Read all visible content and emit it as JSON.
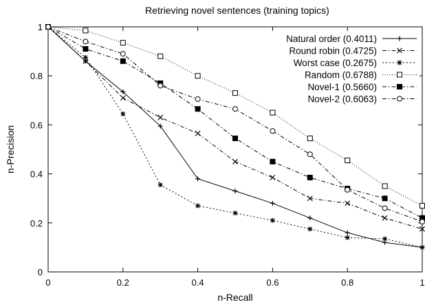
{
  "chart_data": {
    "type": "line",
    "title": "Retrieving novel sentences (training topics)",
    "xlabel": "n-Recall",
    "ylabel": "n-Precision",
    "xlim": [
      0,
      1
    ],
    "ylim": [
      0,
      1
    ],
    "x_ticks": [
      "0",
      "0.2",
      "0.4",
      "0.6",
      "0.8",
      "1"
    ],
    "y_ticks": [
      "0",
      "0.2",
      "0.4",
      "0.6",
      "0.8",
      "1"
    ],
    "grid": false,
    "legend_position": "top-right",
    "x": [
      0,
      0.1,
      0.2,
      0.3,
      0.4,
      0.5,
      0.6,
      0.7,
      0.8,
      0.9,
      1.0
    ],
    "series": [
      {
        "name": "Natural order (0.4011)",
        "marker": "plus",
        "dash": "solid",
        "values": [
          1.0,
          0.86,
          0.735,
          0.595,
          0.38,
          0.33,
          0.28,
          0.22,
          0.16,
          0.12,
          0.1
        ]
      },
      {
        "name": "Round robin (0.4725)",
        "marker": "cross",
        "dash": "dash-dot",
        "values": [
          1.0,
          0.86,
          0.71,
          0.63,
          0.565,
          0.45,
          0.385,
          0.3,
          0.28,
          0.22,
          0.175
        ]
      },
      {
        "name": "Worst case (0.2675)",
        "marker": "star",
        "dash": "dotted",
        "values": [
          1.0,
          0.875,
          0.645,
          0.355,
          0.27,
          0.24,
          0.21,
          0.175,
          0.14,
          0.135,
          0.1
        ]
      },
      {
        "name": "Random (0.6788)",
        "marker": "open-square",
        "dash": "fine-dotted",
        "values": [
          1.0,
          0.985,
          0.935,
          0.88,
          0.8,
          0.73,
          0.65,
          0.545,
          0.455,
          0.35,
          0.27
        ]
      },
      {
        "name": "Novel-1 (0.5660)",
        "marker": "filled-square",
        "dash": "dash-dot",
        "values": [
          1.0,
          0.91,
          0.86,
          0.77,
          0.665,
          0.545,
          0.45,
          0.385,
          0.34,
          0.3,
          0.22
        ]
      },
      {
        "name": "Novel-2 (0.6063)",
        "marker": "open-circle",
        "dash": "dash-dot",
        "values": [
          1.0,
          0.94,
          0.89,
          0.76,
          0.705,
          0.665,
          0.575,
          0.48,
          0.335,
          0.26,
          0.205
        ]
      }
    ]
  }
}
